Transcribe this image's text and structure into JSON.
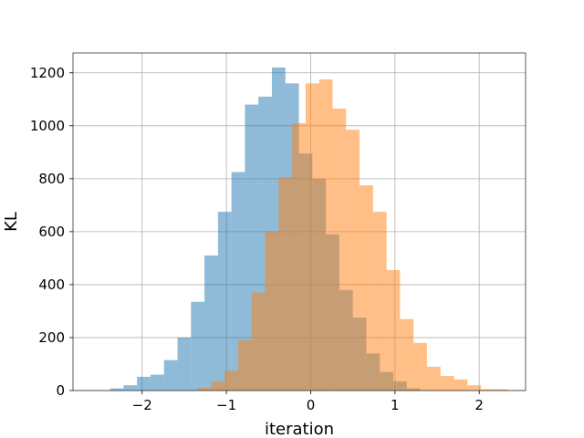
{
  "chart_data": {
    "type": "bar",
    "title": "",
    "xlabel": "iteration",
    "ylabel": "KL",
    "xlim": [
      -2.82,
      2.55
    ],
    "ylim": [
      0,
      1275
    ],
    "grid": true,
    "legend": "none",
    "xticks": [
      -2,
      -1,
      0,
      1,
      2
    ],
    "xtick_labels": [
      "−2",
      "−1",
      "0",
      "1",
      "2"
    ],
    "yticks": [
      0,
      200,
      400,
      600,
      800,
      1000,
      1200
    ],
    "ytick_labels": [
      "0",
      "200",
      "400",
      "600",
      "800",
      "1000",
      "1200"
    ],
    "series": [
      {
        "color": "#1f77b4",
        "opacity": 0.5,
        "bins": [
          {
            "x0": -2.38,
            "x1": -2.22,
            "count": 8
          },
          {
            "x0": -2.22,
            "x1": -2.06,
            "count": 20
          },
          {
            "x0": -2.06,
            "x1": -1.9,
            "count": 52
          },
          {
            "x0": -1.9,
            "x1": -1.74,
            "count": 60
          },
          {
            "x0": -1.74,
            "x1": -1.58,
            "count": 115
          },
          {
            "x0": -1.58,
            "x1": -1.42,
            "count": 200
          },
          {
            "x0": -1.42,
            "x1": -1.26,
            "count": 335
          },
          {
            "x0": -1.26,
            "x1": -1.1,
            "count": 510
          },
          {
            "x0": -1.1,
            "x1": -0.94,
            "count": 675
          },
          {
            "x0": -0.94,
            "x1": -0.78,
            "count": 825
          },
          {
            "x0": -0.78,
            "x1": -0.62,
            "count": 1080
          },
          {
            "x0": -0.62,
            "x1": -0.46,
            "count": 1110
          },
          {
            "x0": -0.46,
            "x1": -0.3,
            "count": 1220
          },
          {
            "x0": -0.3,
            "x1": -0.14,
            "count": 1160
          },
          {
            "x0": -0.14,
            "x1": 0.02,
            "count": 895
          },
          {
            "x0": 0.02,
            "x1": 0.18,
            "count": 800
          },
          {
            "x0": 0.18,
            "x1": 0.34,
            "count": 590
          },
          {
            "x0": 0.34,
            "x1": 0.5,
            "count": 380
          },
          {
            "x0": 0.5,
            "x1": 0.66,
            "count": 275
          },
          {
            "x0": 0.66,
            "x1": 0.82,
            "count": 140
          },
          {
            "x0": 0.82,
            "x1": 0.98,
            "count": 70
          },
          {
            "x0": 0.98,
            "x1": 1.14,
            "count": 35
          },
          {
            "x0": 1.14,
            "x1": 1.3,
            "count": 8
          }
        ]
      },
      {
        "color": "#ff7f0e",
        "opacity": 0.5,
        "bins": [
          {
            "x0": -1.34,
            "x1": -1.18,
            "count": 10
          },
          {
            "x0": -1.18,
            "x1": -1.02,
            "count": 35
          },
          {
            "x0": -1.02,
            "x1": -0.86,
            "count": 75
          },
          {
            "x0": -0.86,
            "x1": -0.7,
            "count": 190
          },
          {
            "x0": -0.7,
            "x1": -0.54,
            "count": 370
          },
          {
            "x0": -0.54,
            "x1": -0.38,
            "count": 600
          },
          {
            "x0": -0.38,
            "x1": -0.22,
            "count": 805
          },
          {
            "x0": -0.22,
            "x1": -0.06,
            "count": 1010
          },
          {
            "x0": -0.06,
            "x1": 0.1,
            "count": 1160
          },
          {
            "x0": 0.1,
            "x1": 0.26,
            "count": 1175
          },
          {
            "x0": 0.26,
            "x1": 0.42,
            "count": 1065
          },
          {
            "x0": 0.42,
            "x1": 0.58,
            "count": 985
          },
          {
            "x0": 0.58,
            "x1": 0.74,
            "count": 775
          },
          {
            "x0": 0.74,
            "x1": 0.9,
            "count": 675
          },
          {
            "x0": 0.9,
            "x1": 1.06,
            "count": 455
          },
          {
            "x0": 1.06,
            "x1": 1.22,
            "count": 270
          },
          {
            "x0": 1.22,
            "x1": 1.38,
            "count": 180
          },
          {
            "x0": 1.38,
            "x1": 1.54,
            "count": 90
          },
          {
            "x0": 1.54,
            "x1": 1.7,
            "count": 55
          },
          {
            "x0": 1.7,
            "x1": 1.86,
            "count": 42
          },
          {
            "x0": 1.86,
            "x1": 2.02,
            "count": 20
          },
          {
            "x0": 2.02,
            "x1": 2.18,
            "count": 5
          },
          {
            "x0": 2.18,
            "x1": 2.34,
            "count": 5
          }
        ]
      }
    ]
  }
}
